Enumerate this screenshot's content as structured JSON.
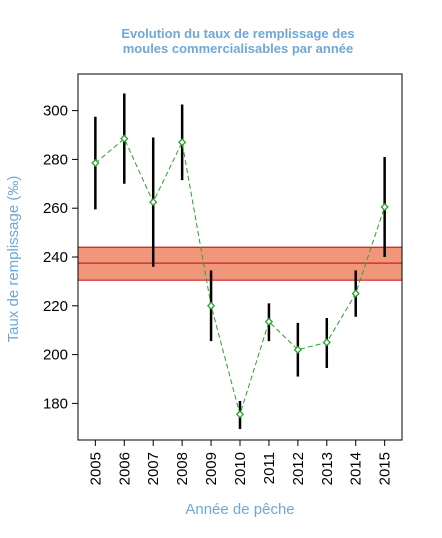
{
  "chart_data": {
    "type": "line",
    "title_line1": "Evolution du taux de remplissage des",
    "title_line2": "moules commercialisables par année",
    "xlabel": "Année de pêche",
    "ylabel": "Taux de remplissage (‰)",
    "categories": [
      "2005",
      "2006",
      "2007",
      "2008",
      "2009",
      "2010",
      "2011",
      "2012",
      "2013",
      "2014",
      "2015"
    ],
    "values": [
      278.5,
      288.5,
      262.5,
      287.0,
      220.0,
      175.5,
      213.5,
      202.0,
      205.0,
      225.0,
      260.5
    ],
    "ci_low": [
      259.5,
      270.0,
      236.0,
      271.5,
      205.5,
      169.5,
      205.5,
      191.0,
      194.5,
      215.5,
      240.0
    ],
    "ci_high": [
      297.5,
      307.0,
      289.0,
      302.5,
      234.5,
      181.0,
      221.0,
      213.0,
      215.0,
      234.5,
      281.0
    ],
    "reference_band": {
      "low": 230.5,
      "mean": 237.5,
      "high": 244.0
    },
    "yticks": [
      180,
      200,
      220,
      240,
      260,
      280,
      300
    ],
    "ylim": [
      165,
      315
    ],
    "xlim": [
      0.4,
      11.6
    ],
    "grid": false,
    "legend": "none",
    "colors": {
      "line": "#2ca02c",
      "points": "#2ca02c",
      "error_bars": "#000000",
      "band_fill": "#f0977b",
      "band_lines": "#cc2222",
      "title": "#6fa8d6"
    }
  }
}
